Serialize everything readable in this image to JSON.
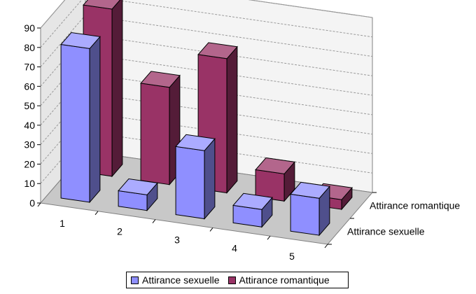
{
  "chart_data": {
    "type": "bar",
    "style": "3d-clustered-depth",
    "categories": [
      "1",
      "2",
      "3",
      "4",
      "5"
    ],
    "series": [
      {
        "name": "Attirance sexuelle",
        "values": [
          79,
          8,
          35,
          9,
          19
        ],
        "color": "#8F8FFF"
      },
      {
        "name": "Attirance romantique",
        "values": [
          86,
          50,
          69,
          14,
          5
        ],
        "color": "#993366"
      }
    ],
    "ylim": [
      0,
      90
    ],
    "yticks": [
      "0",
      "10",
      "20",
      "30",
      "40",
      "50",
      "60",
      "70",
      "80",
      "90"
    ],
    "depth_labels": [
      "Attirance sexuelle",
      "Attirance romantique"
    ],
    "grid": true,
    "legend_position": "bottom"
  }
}
